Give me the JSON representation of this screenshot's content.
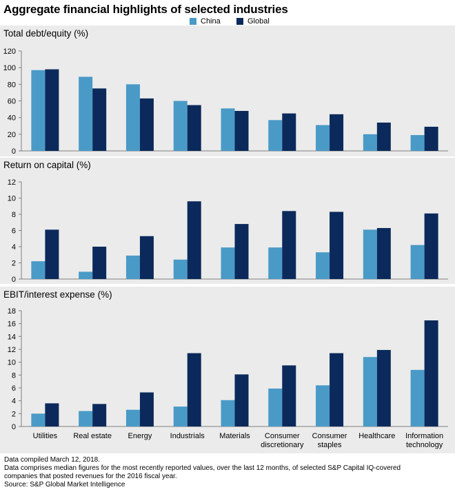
{
  "title": "Aggregate financial highlights of selected industries",
  "colors": {
    "china": "#4a9ac7",
    "global": "#0b2a5b",
    "panel_bg": "#ebebeb",
    "axis": "#7f7f7f"
  },
  "chart_data": [
    {
      "type": "bar",
      "title": "Total debt/equity (%)",
      "categories": [
        "Utilities",
        "Real estate",
        "Energy",
        "Industrials",
        "Materials",
        "Consumer discretionary",
        "Consumer staples",
        "Healthcare",
        "Information technology"
      ],
      "series": [
        {
          "name": "China",
          "values": [
            97,
            89,
            80,
            60,
            51,
            37,
            31,
            20,
            19
          ]
        },
        {
          "name": "Global",
          "values": [
            98,
            75,
            63,
            55,
            48,
            45,
            44,
            34,
            29
          ]
        }
      ],
      "ylim": [
        0,
        120
      ],
      "yticks": [
        0,
        20,
        40,
        60,
        80,
        100,
        120
      ],
      "legend": "top-center"
    },
    {
      "type": "bar",
      "title": "Return on capital (%)",
      "categories": [
        "Utilities",
        "Real estate",
        "Energy",
        "Industrials",
        "Materials",
        "Consumer discretionary",
        "Consumer staples",
        "Healthcare",
        "Information technology"
      ],
      "series": [
        {
          "name": "China",
          "values": [
            2.2,
            0.9,
            2.9,
            2.4,
            3.9,
            3.9,
            3.3,
            6.1,
            4.2
          ]
        },
        {
          "name": "Global",
          "values": [
            6.1,
            4.0,
            5.3,
            9.6,
            6.8,
            8.4,
            8.3,
            6.3,
            8.1
          ]
        }
      ],
      "ylim": [
        0,
        12
      ],
      "yticks": [
        0,
        2,
        4,
        6,
        8,
        10,
        12
      ]
    },
    {
      "type": "bar",
      "title": "EBIT/interest expense (%)",
      "categories": [
        "Utilities",
        "Real estate",
        "Energy",
        "Industrials",
        "Materials",
        "Consumer discretionary",
        "Consumer staples",
        "Healthcare",
        "Information technology"
      ],
      "category_labels": [
        [
          "Utilities"
        ],
        [
          "Real estate"
        ],
        [
          "Energy"
        ],
        [
          "Industrials"
        ],
        [
          "Materials"
        ],
        [
          "Consumer",
          "discretionary"
        ],
        [
          "Consumer",
          "staples"
        ],
        [
          "Healthcare"
        ],
        [
          "Information",
          "technology"
        ]
      ],
      "series": [
        {
          "name": "China",
          "values": [
            2.0,
            2.4,
            2.6,
            3.1,
            4.1,
            5.9,
            6.4,
            10.8,
            8.8
          ]
        },
        {
          "name": "Global",
          "values": [
            3.6,
            3.5,
            5.3,
            11.4,
            8.1,
            9.5,
            11.4,
            11.9,
            16.5
          ]
        }
      ],
      "ylim": [
        0,
        18
      ],
      "yticks": [
        0,
        2,
        4,
        6,
        8,
        10,
        12,
        14,
        16,
        18
      ]
    }
  ],
  "legend": {
    "china_label": "China",
    "global_label": "Global"
  },
  "footer": {
    "line1": "Data compiled March 12, 2018.",
    "line2": "Data comprises median figures for the most recently reported values, over the last 12 months, of selected S&P Capital IQ-covered",
    "line3": "companies that posted revenues for the 2016 fiscal year.",
    "line4": "Source: S&P Global Market Intelligence"
  }
}
